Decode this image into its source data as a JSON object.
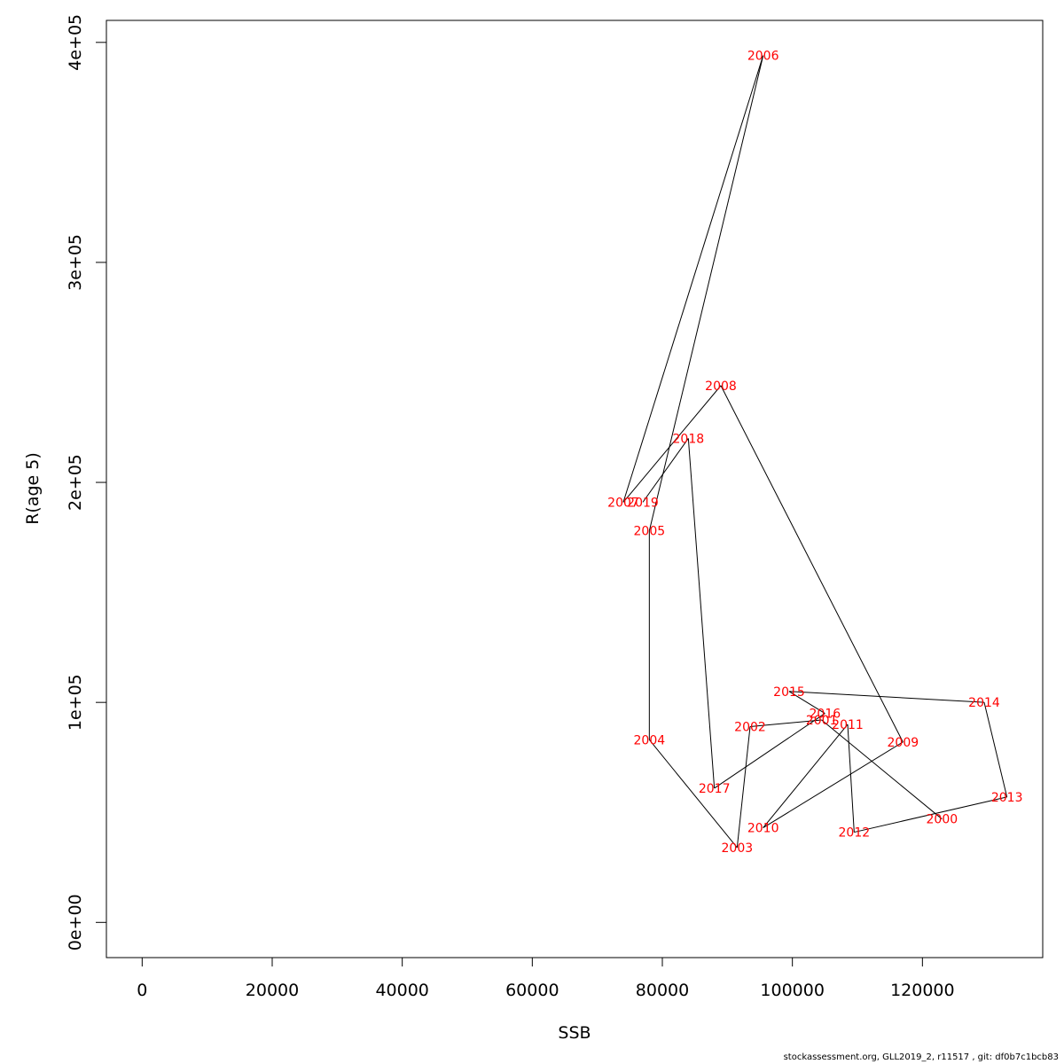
{
  "chart_data": {
    "type": "line",
    "xlabel": "SSB",
    "ylabel": "R(age 5)",
    "xlim": [
      -5500,
      138500
    ],
    "ylim": [
      -16000,
      410000
    ],
    "x_ticks": [
      0,
      20000,
      40000,
      60000,
      80000,
      100000,
      120000
    ],
    "x_tick_labels": [
      "0",
      "20000",
      "40000",
      "60000",
      "80000",
      "100000",
      "120000"
    ],
    "y_ticks": [
      0,
      100000,
      200000,
      300000,
      400000
    ],
    "y_tick_labels": [
      "0e+00",
      "1e+05",
      "2e+05",
      "3e+05",
      "4e+05"
    ],
    "grid": false,
    "series": [
      {
        "point_color": "#ff0000",
        "line_color": "#000000",
        "points": [
          {
            "label": "2000",
            "x": 123000,
            "y": 47000
          },
          {
            "label": "2001",
            "x": 104500,
            "y": 92000
          },
          {
            "label": "2002",
            "x": 93500,
            "y": 89000
          },
          {
            "label": "2003",
            "x": 91500,
            "y": 34000
          },
          {
            "label": "2004",
            "x": 78000,
            "y": 83000
          },
          {
            "label": "2005",
            "x": 78000,
            "y": 178000
          },
          {
            "label": "2006",
            "x": 95500,
            "y": 394000
          },
          {
            "label": "2007",
            "x": 74000,
            "y": 191000
          },
          {
            "label": "2008",
            "x": 89000,
            "y": 244000
          },
          {
            "label": "2009",
            "x": 117000,
            "y": 82000
          },
          {
            "label": "2010",
            "x": 95500,
            "y": 43000
          },
          {
            "label": "2011",
            "x": 108500,
            "y": 90000
          },
          {
            "label": "2012",
            "x": 109500,
            "y": 41000
          },
          {
            "label": "2013",
            "x": 133000,
            "y": 57000
          },
          {
            "label": "2014",
            "x": 129500,
            "y": 100000
          },
          {
            "label": "2015",
            "x": 99500,
            "y": 105000
          },
          {
            "label": "2016",
            "x": 105000,
            "y": 95000
          },
          {
            "label": "2017",
            "x": 88000,
            "y": 61000
          },
          {
            "label": "2018",
            "x": 84000,
            "y": 220000
          },
          {
            "label": "2019",
            "x": 77000,
            "y": 191000
          }
        ]
      }
    ]
  },
  "footer": {
    "text": "stockassessment.org, GLL2019_2, r11517 , git: df0b7c1bcb83"
  }
}
